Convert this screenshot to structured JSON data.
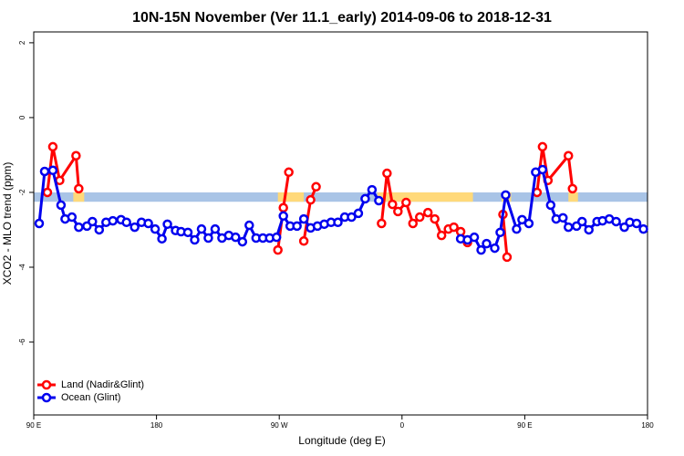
{
  "chart_data": {
    "type": "line",
    "title": "10N-15N November (Ver 11.1_early)   2014-09-06 to 2018-12-31",
    "xlabel": "Longitude (deg E)",
    "ylabel": "XCO2 - MLO trend (ppm)",
    "xlim": [
      90,
      540
    ],
    "xticks": [
      {
        "value": 90,
        "label": "90 E"
      },
      180,
      {
        "value": 270,
        "label": "90 W"
      },
      {
        "value": 360,
        "label": "0"
      },
      {
        "value": 450,
        "label": "90 E"
      },
      {
        "value": 540,
        "label": "180"
      }
    ],
    "ylim": [
      -7.95,
      2.29
    ],
    "yticks": [
      2,
      0,
      -2,
      -4,
      -6
    ],
    "legend": "bottom-left",
    "band": {
      "ylim": [
        -2.25,
        -2.0
      ],
      "color": "#a9c4e6",
      "highlight_color": "#ffd97a",
      "highlights": [
        [
          119,
          127
        ],
        [
          269,
          288
        ],
        [
          342,
          412
        ],
        [
          433,
          440
        ],
        [
          482,
          489
        ]
      ]
    },
    "series": [
      {
        "name": "Land (Nadir&Glint)",
        "color": "#ff0000",
        "x": [
          100,
          104,
          109,
          121,
          123,
          null,
          269,
          273,
          277,
          null,
          288,
          293,
          297,
          null,
          345,
          349,
          353,
          357,
          363,
          368,
          373,
          379,
          384,
          389,
          394,
          398,
          403,
          408,
          null,
          434,
          437,
          null,
          459,
          463,
          467,
          482,
          485
        ],
        "values": [
          -2.0,
          -0.78,
          -1.68,
          -1.02,
          -1.9,
          null,
          -3.54,
          -2.41,
          -1.46,
          null,
          -3.3,
          -2.2,
          -1.85,
          null,
          -2.83,
          -1.49,
          -2.32,
          -2.51,
          -2.27,
          -2.83,
          -2.66,
          -2.54,
          -2.71,
          -3.15,
          -2.98,
          -2.93,
          -3.05,
          -3.34,
          null,
          -2.59,
          -3.73,
          null,
          -2.0,
          -0.78,
          -1.68,
          -1.02,
          -1.9
        ]
      },
      {
        "name": "Ocean (Glint)",
        "color": "#0000ee",
        "x": [
          94,
          98,
          104,
          110,
          113,
          118,
          123,
          129,
          133,
          138,
          143,
          148,
          154,
          158,
          164,
          169,
          174,
          179,
          184,
          188,
          194,
          198,
          203,
          208,
          213,
          218,
          223,
          228,
          233,
          238,
          243,
          248,
          253,
          258,
          263,
          268,
          273,
          278,
          283,
          288,
          293,
          298,
          303,
          308,
          313,
          318,
          323,
          328,
          333,
          338,
          343,
          null,
          403,
          408,
          413,
          418,
          422,
          428,
          432,
          436,
          444,
          448,
          453,
          458,
          463,
          469,
          473,
          478,
          482,
          488,
          492,
          497,
          503,
          507,
          512,
          517,
          523,
          527,
          532,
          537
        ],
        "values": [
          -2.83,
          -1.44,
          -1.41,
          -2.34,
          -2.71,
          -2.66,
          -2.93,
          -2.9,
          -2.78,
          -3.0,
          -2.8,
          -2.76,
          -2.73,
          -2.8,
          -2.93,
          -2.8,
          -2.83,
          -2.98,
          -3.24,
          -2.85,
          -3.02,
          -3.05,
          -3.07,
          -3.27,
          -2.98,
          -3.22,
          -2.98,
          -3.22,
          -3.15,
          -3.2,
          -3.32,
          -2.88,
          -3.22,
          -3.22,
          -3.22,
          -3.2,
          -2.63,
          -2.9,
          -2.9,
          -2.71,
          -2.95,
          -2.9,
          -2.85,
          -2.8,
          -2.8,
          -2.66,
          -2.66,
          -2.56,
          -2.17,
          -1.93,
          -2.22,
          null,
          -3.24,
          -3.27,
          -3.2,
          -3.54,
          -3.37,
          -3.49,
          -3.07,
          -2.07,
          -2.98,
          -2.73,
          -2.83,
          -1.46,
          -1.39,
          -2.34,
          -2.71,
          -2.68,
          -2.93,
          -2.9,
          -2.78,
          -3.0,
          -2.78,
          -2.76,
          -2.71,
          -2.78,
          -2.93,
          -2.8,
          -2.83,
          -2.98
        ]
      }
    ]
  }
}
